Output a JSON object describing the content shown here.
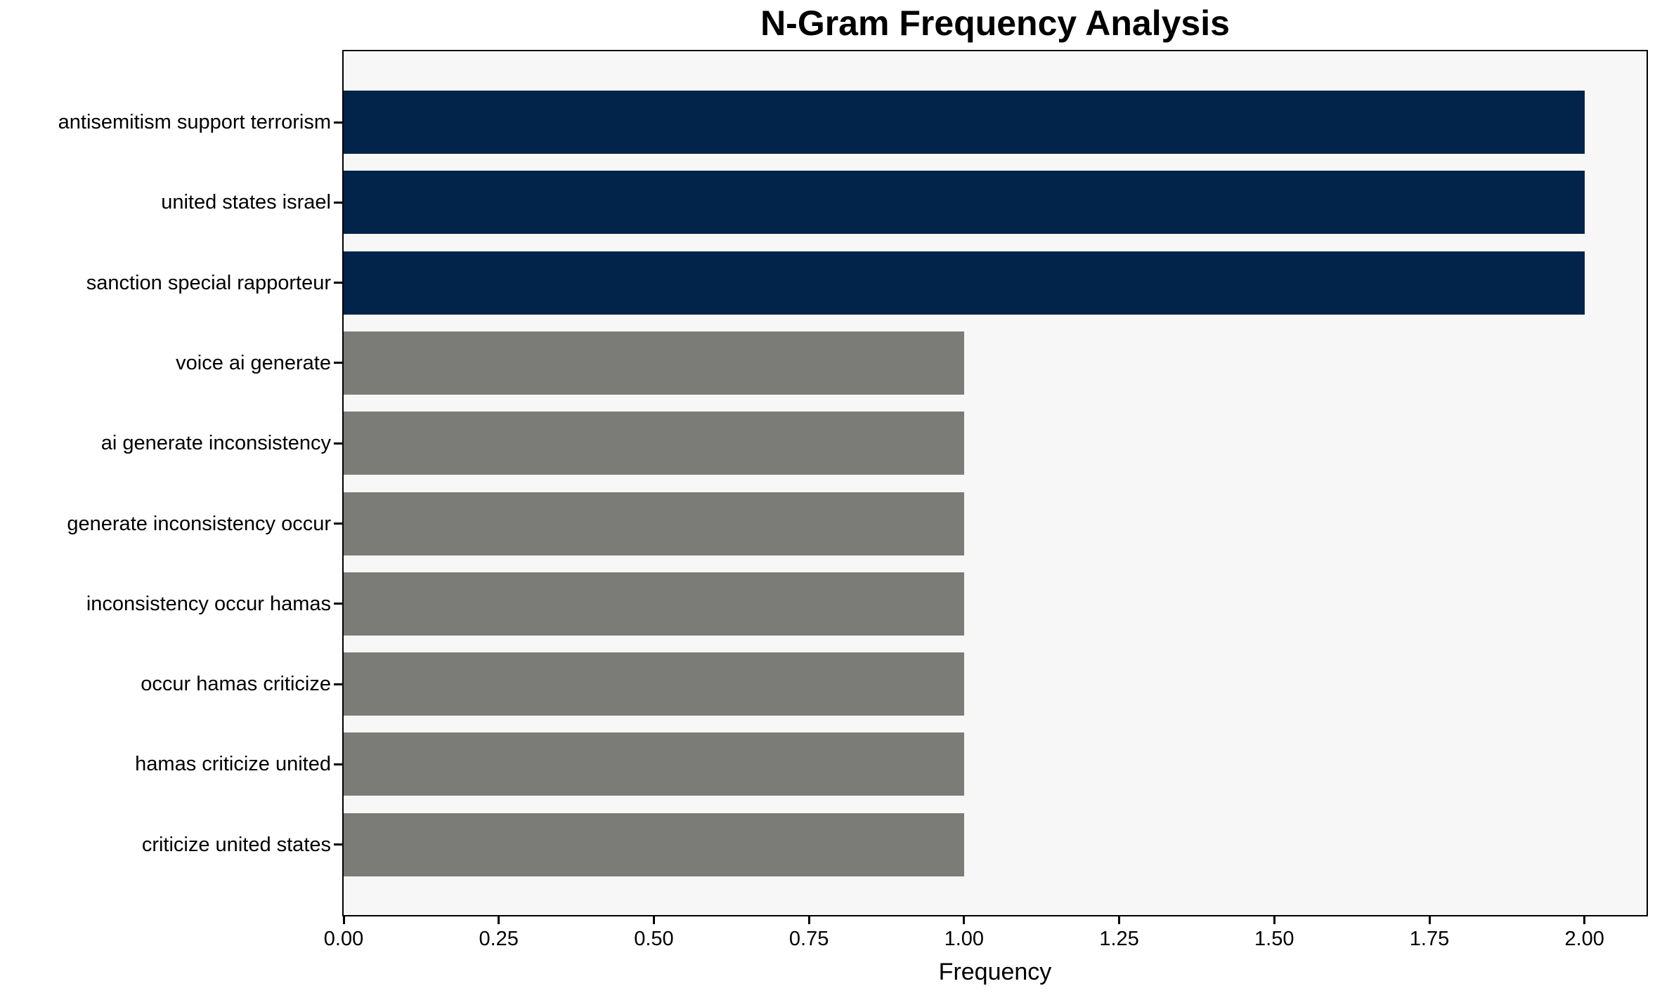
{
  "chart_data": {
    "type": "bar",
    "orientation": "horizontal",
    "title": "N-Gram Frequency Analysis",
    "xlabel": "Frequency",
    "ylabel": "",
    "categories": [
      "antisemitism support terrorism",
      "united states israel",
      "sanction special rapporteur",
      "voice ai generate",
      "ai generate inconsistency",
      "generate inconsistency occur",
      "inconsistency occur hamas",
      "occur hamas criticize",
      "hamas criticize united",
      "criticize united states"
    ],
    "values": [
      2,
      2,
      2,
      1,
      1,
      1,
      1,
      1,
      1,
      1
    ],
    "bar_colors": [
      "#02234a",
      "#02234a",
      "#02234a",
      "#7b7b78",
      "#7b7b78",
      "#7b7b78",
      "#7b7b78",
      "#7b7b78",
      "#7b7b78",
      "#7b7b78"
    ],
    "x_tick_labels": [
      "0.00",
      "0.25",
      "0.50",
      "0.75",
      "1.00",
      "1.25",
      "1.50",
      "1.75",
      "2.00"
    ],
    "x_tick_values": [
      0,
      0.25,
      0.5,
      0.75,
      1.0,
      1.25,
      1.5,
      1.75,
      2.0
    ],
    "xlim": [
      0,
      2.1
    ],
    "grid": false,
    "legend": "none",
    "colors": {
      "highlight_bar": "#02234a",
      "default_bar": "#7b7b78",
      "plot_background": "#f7f7f7",
      "figure_background": "#ffffff",
      "axis": "#000000"
    }
  }
}
